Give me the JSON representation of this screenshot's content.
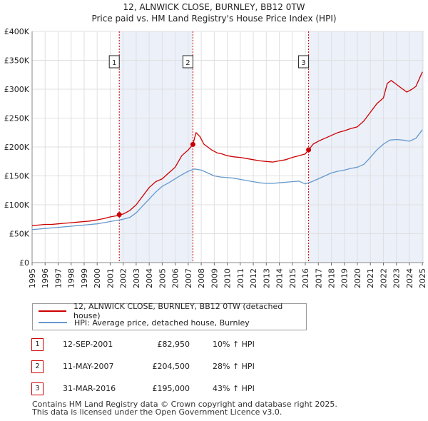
{
  "title": "12, ALNWICK CLOSE, BURNLEY, BB12 0TW",
  "subtitle": "Price paid vs. HM Land Registry's House Price Index (HPI)",
  "colors": {
    "property": "#cc0000",
    "hpi": "#6699cc",
    "shade": "#dde6f5",
    "marker_line": "#cc0000"
  },
  "chart_data": {
    "type": "line",
    "title": "12, ALNWICK CLOSE, BURNLEY, BB12 0TW",
    "xlabel": "",
    "ylabel": "",
    "xlim": [
      1995,
      2025.1
    ],
    "ylim": [
      0,
      400000
    ],
    "grid": true,
    "y_ticks": [
      {
        "value": 0,
        "label": "£0"
      },
      {
        "value": 50000,
        "label": "£50K"
      },
      {
        "value": 100000,
        "label": "£100K"
      },
      {
        "value": 150000,
        "label": "£150K"
      },
      {
        "value": 200000,
        "label": "£200K"
      },
      {
        "value": 250000,
        "label": "£250K"
      },
      {
        "value": 300000,
        "label": "£300K"
      },
      {
        "value": 350000,
        "label": "£350K"
      },
      {
        "value": 400000,
        "label": "£400K"
      }
    ],
    "x_ticks": [
      "1995",
      "1996",
      "1997",
      "1998",
      "1999",
      "2000",
      "2001",
      "2002",
      "2003",
      "2004",
      "2005",
      "2006",
      "2007",
      "2008",
      "2009",
      "2010",
      "2011",
      "2012",
      "2013",
      "2014",
      "2015",
      "2016",
      "2017",
      "2018",
      "2019",
      "2020",
      "2021",
      "2022",
      "2023",
      "2024",
      "2025"
    ],
    "shaded_ranges": [
      [
        2001.7,
        2007.36
      ],
      [
        2016.25,
        2025.1
      ]
    ],
    "series": [
      {
        "name": "12, ALNWICK CLOSE, BURNLEY, BB12 0TW (detached house)",
        "x": [
          1995,
          1995.5,
          1996,
          1996.5,
          1997,
          1997.5,
          1998,
          1998.5,
          1999,
          1999.5,
          2000,
          2000.5,
          2001,
          2001.5,
          2001.7,
          2002,
          2002.5,
          2003,
          2003.5,
          2004,
          2004.5,
          2005,
          2005.5,
          2006,
          2006.5,
          2007,
          2007.36,
          2007.6,
          2007.9,
          2008.2,
          2008.5,
          2008.8,
          2009.2,
          2009.6,
          2010,
          2010.5,
          2011,
          2011.5,
          2012,
          2012.5,
          2013,
          2013.5,
          2014,
          2014.5,
          2015,
          2015.5,
          2016,
          2016.25,
          2016.6,
          2017,
          2017.5,
          2018,
          2018.5,
          2019,
          2019.5,
          2020,
          2020.5,
          2021,
          2021.5,
          2022,
          2022.3,
          2022.6,
          2022.9,
          2023.2,
          2023.5,
          2023.8,
          2024.2,
          2024.5,
          2024.8,
          2025
        ],
        "values": [
          64000,
          65000,
          66000,
          66000,
          67000,
          68000,
          69000,
          70000,
          71000,
          72000,
          74000,
          76000,
          79000,
          81000,
          82950,
          84000,
          90000,
          100000,
          115000,
          130000,
          140000,
          145000,
          155000,
          165000,
          185000,
          195000,
          204500,
          225000,
          218000,
          205000,
          200000,
          195000,
          190000,
          188000,
          185000,
          183000,
          182000,
          180000,
          178000,
          176000,
          175000,
          174000,
          176000,
          178000,
          182000,
          185000,
          188000,
          195000,
          205000,
          210000,
          215000,
          220000,
          225000,
          228000,
          232000,
          235000,
          245000,
          260000,
          275000,
          285000,
          310000,
          315000,
          310000,
          305000,
          300000,
          295000,
          300000,
          305000,
          320000,
          330000
        ]
      },
      {
        "name": "HPI: Average price, detached house, Burnley",
        "x": [
          1995,
          1995.5,
          1996,
          1996.5,
          1997,
          1997.5,
          1998,
          1998.5,
          1999,
          1999.5,
          2000,
          2000.5,
          2001,
          2001.5,
          2002,
          2002.5,
          2003,
          2003.5,
          2004,
          2004.5,
          2005,
          2005.5,
          2006,
          2006.5,
          2007,
          2007.5,
          2008,
          2008.5,
          2009,
          2009.5,
          2010,
          2010.5,
          2011,
          2011.5,
          2012,
          2012.5,
          2013,
          2013.5,
          2014,
          2014.5,
          2015,
          2015.5,
          2016,
          2016.5,
          2017,
          2017.5,
          2018,
          2018.5,
          2019,
          2019.5,
          2020,
          2020.5,
          2021,
          2021.5,
          2022,
          2022.5,
          2023,
          2023.5,
          2024,
          2024.5,
          2025
        ],
        "values": [
          57000,
          58000,
          59000,
          60000,
          61000,
          62000,
          63000,
          64000,
          65000,
          66000,
          67000,
          69000,
          71000,
          73000,
          75000,
          78000,
          86000,
          98000,
          110000,
          122000,
          132000,
          138000,
          145000,
          152000,
          158000,
          162000,
          160000,
          155000,
          150000,
          148000,
          147000,
          146000,
          144000,
          142000,
          140000,
          138000,
          137000,
          137000,
          138000,
          139000,
          140000,
          141000,
          136000,
          140000,
          145000,
          150000,
          155000,
          158000,
          160000,
          163000,
          165000,
          170000,
          182000,
          195000,
          205000,
          212000,
          213000,
          212000,
          210000,
          215000,
          230000
        ]
      }
    ],
    "sales": [
      {
        "id": "1",
        "x": 2001.7,
        "y": 82950
      },
      {
        "id": "2",
        "x": 2007.36,
        "y": 204500
      },
      {
        "id": "3",
        "x": 2016.25,
        "y": 195000
      }
    ]
  },
  "legend": {
    "property_label": "12, ALNWICK CLOSE, BURNLEY, BB12 0TW (detached house)",
    "hpi_label": "HPI: Average price, detached house, Burnley"
  },
  "sales_table": [
    {
      "id": "1",
      "date": "12-SEP-2001",
      "price": "£82,950",
      "pct": "10% ↑ HPI"
    },
    {
      "id": "2",
      "date": "11-MAY-2007",
      "price": "£204,500",
      "pct": "28% ↑ HPI"
    },
    {
      "id": "3",
      "date": "31-MAR-2016",
      "price": "£195,000",
      "pct": "43% ↑ HPI"
    }
  ],
  "footer": {
    "line1": "Contains HM Land Registry data © Crown copyright and database right 2025.",
    "line2": "This data is licensed under the Open Government Licence v3.0."
  }
}
